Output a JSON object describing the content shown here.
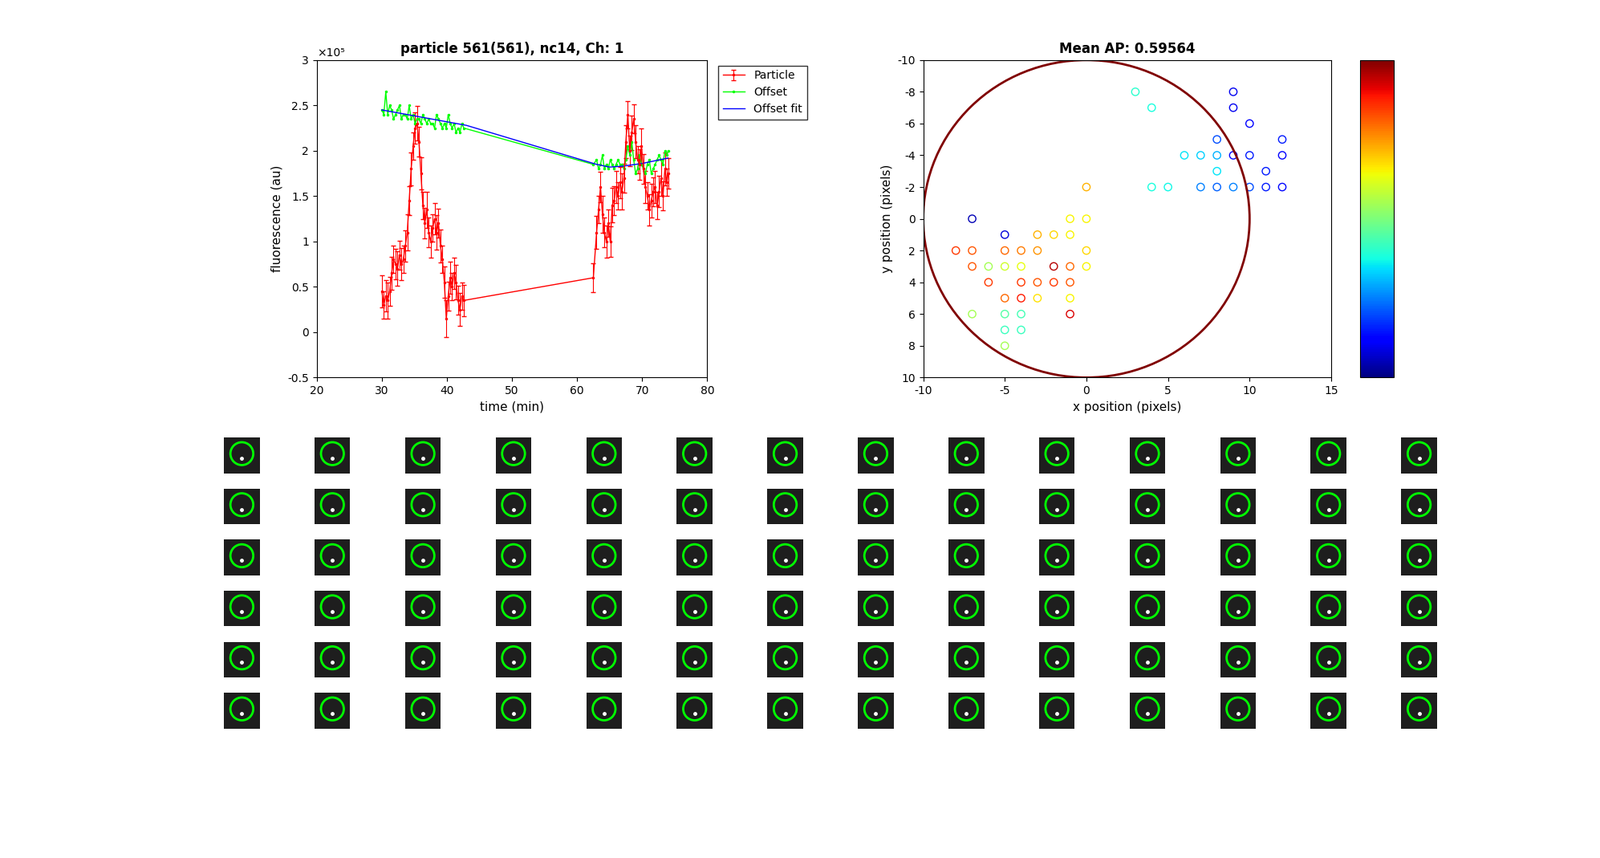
{
  "chart_data": [
    {
      "type": "line",
      "title": "particle 561(561), nc14, Ch: 1",
      "x_label": "time (min)",
      "y_label": "fluorescence (au)",
      "y_multiplier": "×10⁵",
      "xlim": [
        20,
        80
      ],
      "xticks": [
        20,
        30,
        40,
        50,
        60,
        70,
        80
      ],
      "ylim": [
        -0.5,
        3
      ],
      "yticks": [
        -0.5,
        0,
        0.5,
        1,
        1.5,
        2,
        2.5,
        3
      ],
      "legend": "upper right",
      "x": [
        30,
        30.3,
        30.6,
        30.9,
        31.2,
        31.5,
        31.8,
        32.1,
        32.4,
        32.7,
        33,
        33.3,
        33.6,
        33.9,
        34.2,
        34.5,
        34.8,
        35.1,
        35.4,
        35.7,
        36,
        36.3,
        36.6,
        36.9,
        37.2,
        37.5,
        37.8,
        38.1,
        38.4,
        38.7,
        39,
        39.3,
        39.6,
        39.9,
        40.2,
        40.5,
        40.8,
        41.1,
        41.4,
        41.7,
        42,
        42.3,
        42.6,
        62.5,
        63,
        63.3,
        63.6,
        63.9,
        64.2,
        64.5,
        64.8,
        65.1,
        65.4,
        65.7,
        66,
        66.3,
        66.6,
        66.9,
        67.2,
        67.5,
        67.8,
        68.1,
        68.4,
        68.7,
        69,
        69.3,
        69.6,
        69.9,
        70.2,
        70.5,
        70.8,
        71.1,
        71.4,
        71.7,
        72,
        72.3,
        72.6,
        72.9,
        73.2,
        73.5,
        73.8,
        74
      ],
      "series": [
        {
          "name": "Particle",
          "color": "#ff0000",
          "marker": "point",
          "values": [
            0.45,
            0.3,
            0.4,
            0.35,
            0.45,
            0.65,
            0.8,
            0.75,
            0.7,
            0.85,
            0.75,
            0.8,
            0.95,
            1.1,
            1.45,
            1.8,
            2.05,
            2.25,
            2.3,
            2.1,
            1.75,
            1.4,
            1.2,
            1.35,
            1.1,
            1.0,
            1.15,
            1.25,
            1.1,
            1.2,
            0.95,
            0.8,
            0.55,
            0.15,
            0.4,
            0.6,
            0.5,
            0.65,
            0.55,
            0.35,
            0.25,
            0.4,
            0.35,
            0.6,
            1.1,
            1.35,
            1.6,
            1.3,
            1.1,
            1.0,
            1.2,
            1.0,
            1.4,
            1.45,
            1.6,
            1.5,
            1.65,
            1.55,
            1.7,
            2.1,
            2.4,
            2.0,
            2.2,
            2.35,
            2.1,
            1.9,
            1.85,
            2.05,
            1.8,
            1.6,
            1.5,
            1.35,
            1.45,
            1.55,
            1.6,
            1.4,
            1.55,
            1.7,
            1.5,
            1.8,
            1.65,
            1.75
          ],
          "errors": [
            0.18,
            0.15,
            0.17,
            0.2,
            0.16,
            0.18,
            0.15,
            0.17,
            0.19,
            0.16,
            0.18,
            0.15,
            0.17,
            0.2,
            0.16,
            0.18,
            0.15,
            0.17,
            0.19,
            0.16,
            0.18,
            0.15,
            0.17,
            0.2,
            0.16,
            0.18,
            0.15,
            0.17,
            0.19,
            0.16,
            0.18,
            0.15,
            0.17,
            0.2,
            0.16,
            0.18,
            0.15,
            0.17,
            0.19,
            0.16,
            0.18,
            0.15,
            0.17,
            0.16,
            0.18,
            0.15,
            0.17,
            0.2,
            0.16,
            0.18,
            0.15,
            0.17,
            0.19,
            0.16,
            0.18,
            0.15,
            0.17,
            0.2,
            0.16,
            0.18,
            0.15,
            0.17,
            0.19,
            0.16,
            0.18,
            0.15,
            0.17,
            0.2,
            0.16,
            0.18,
            0.15,
            0.17,
            0.19,
            0.16,
            0.18,
            0.15,
            0.17,
            0.2,
            0.16,
            0.18,
            0.15,
            0.17
          ]
        },
        {
          "name": "Offset",
          "color": "#00ff00",
          "marker": "point",
          "values": [
            2.45,
            2.4,
            2.65,
            2.4,
            2.5,
            2.45,
            2.35,
            2.4,
            2.45,
            2.5,
            2.35,
            2.4,
            2.4,
            2.35,
            2.5,
            2.35,
            2.4,
            2.3,
            2.35,
            2.35,
            2.3,
            2.4,
            2.35,
            2.3,
            2.35,
            2.3,
            2.3,
            2.25,
            2.4,
            2.35,
            2.3,
            2.25,
            2.3,
            2.25,
            2.4,
            2.3,
            2.25,
            2.3,
            2.2,
            2.25,
            2.2,
            2.3,
            2.25,
            1.85,
            1.9,
            1.8,
            1.85,
            1.95,
            1.8,
            1.85,
            1.8,
            1.9,
            1.85,
            1.8,
            1.85,
            1.9,
            1.85,
            1.85,
            1.8,
            1.9,
            2.05,
            1.95,
            2.1,
            1.9,
            1.75,
            1.8,
            1.95,
            1.85,
            1.8,
            1.75,
            1.85,
            1.9,
            1.75,
            1.8,
            1.85,
            1.9,
            1.95,
            1.9,
            1.85,
            2.0,
            1.95,
            2.0
          ]
        },
        {
          "name": "Offset fit",
          "color": "#0000ff",
          "x": [
            30,
            43,
            63,
            65,
            67,
            70,
            74
          ],
          "values": [
            2.45,
            2.28,
            1.85,
            1.82,
            1.83,
            1.86,
            1.92
          ]
        }
      ]
    },
    {
      "type": "scatter",
      "title": "Mean AP: 0.59564",
      "x_label": "x position (pixels)",
      "y_label": "y position (pixels)",
      "xlim": [
        -10,
        15
      ],
      "xticks": [
        -10,
        -5,
        0,
        5,
        10,
        15
      ],
      "ylim": [
        10,
        -10
      ],
      "yticks": [
        -10,
        -8,
        -6,
        -4,
        -2,
        0,
        2,
        4,
        6,
        8,
        10
      ],
      "ellipse": {
        "x": 0,
        "y": 0,
        "rx": 10,
        "ry": 10,
        "color": "#800000"
      },
      "colorbar_lim": [
        0,
        1
      ],
      "marker": "circle",
      "x": [
        3,
        4,
        9,
        9,
        10,
        12,
        8,
        6,
        7,
        8,
        9,
        10,
        12,
        8,
        11,
        4,
        5,
        7,
        8,
        9,
        10,
        11,
        12,
        0,
        -7,
        -1,
        0,
        -5,
        -3,
        -2,
        -1,
        -8,
        -7,
        -5,
        -4,
        -3,
        0,
        -7,
        -6,
        -5,
        -4,
        -2,
        -1,
        0,
        -6,
        -4,
        -3,
        -2,
        -1,
        -5,
        -4,
        -3,
        -1,
        -5,
        -4,
        -7,
        -1,
        -5,
        -4,
        -5
      ],
      "y": [
        -8,
        -7,
        -8,
        -7,
        -6,
        -5,
        -5,
        -4,
        -4,
        -4,
        -4,
        -4,
        -4,
        -3,
        -3,
        -2,
        -2,
        -2,
        -2,
        -2,
        -2,
        -2,
        -2,
        -2,
        0,
        0,
        0,
        1,
        1,
        1,
        1,
        2,
        2,
        2,
        2,
        2,
        2,
        3,
        3,
        3,
        3,
        3,
        3,
        3,
        4,
        4,
        4,
        4,
        4,
        5,
        5,
        5,
        5,
        6,
        6,
        6,
        6,
        7,
        7,
        8
      ],
      "values": [
        0.4,
        0.38,
        0.1,
        0.1,
        0.12,
        0.15,
        0.2,
        0.35,
        0.33,
        0.3,
        0.12,
        0.15,
        0.12,
        0.35,
        0.15,
        0.38,
        0.37,
        0.25,
        0.22,
        0.25,
        0.2,
        0.15,
        0.13,
        0.72,
        0.05,
        0.65,
        0.65,
        0.08,
        0.72,
        0.68,
        0.65,
        0.85,
        0.82,
        0.8,
        0.78,
        0.75,
        0.68,
        0.82,
        0.55,
        0.6,
        0.63,
        0.95,
        0.8,
        0.65,
        0.85,
        0.85,
        0.82,
        0.85,
        0.82,
        0.8,
        0.88,
        0.67,
        0.65,
        0.45,
        0.43,
        0.55,
        0.92,
        0.42,
        0.42,
        0.55
      ]
    }
  ]
}
